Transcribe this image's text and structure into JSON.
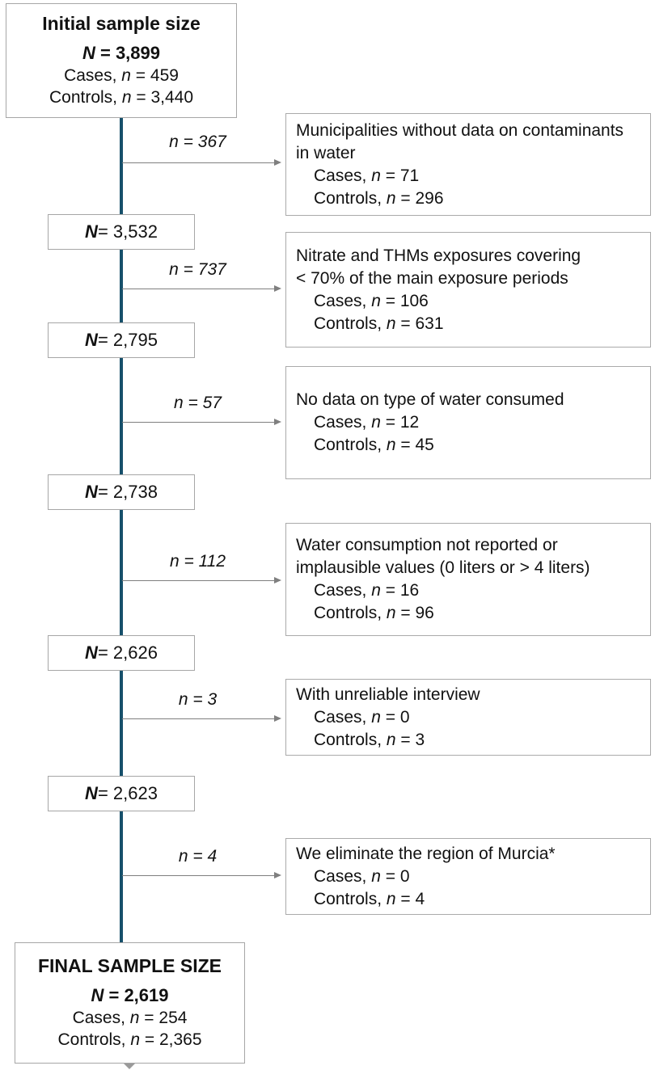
{
  "colors": {
    "connector_line": "#17506b",
    "arrow": "#7f7f7f",
    "box_border": "#a6a6a6"
  },
  "initial_box": {
    "title": "Initial sample size",
    "n": {
      "var": "N",
      "rest": " = 3,899"
    },
    "cases": {
      "pre": "Cases, ",
      "var": "n",
      "rest": " = 459"
    },
    "controls": {
      "pre": "Controls, ",
      "var": "n",
      "rest": " = 3,440"
    }
  },
  "final_box": {
    "title": "FINAL SAMPLE SIZE",
    "n": {
      "var": "N",
      "rest": " = 2,619"
    },
    "cases": {
      "pre": "Cases, ",
      "var": "n",
      "rest": " = 254"
    },
    "controls": {
      "pre": "Controls, ",
      "var": "n",
      "rest": " = 2,365"
    }
  },
  "steps": [
    {
      "arrow_label": "n = 367",
      "exclusion": {
        "reason_lines": [
          "Municipalities without data on contaminants",
          "in water"
        ],
        "cases": {
          "pre": "Cases, ",
          "var": "n",
          "rest": " = 71"
        },
        "controls": {
          "pre": "Controls, ",
          "var": "n",
          "rest": " = 296"
        }
      },
      "result": {
        "var": "N",
        "rest": " = 3,532"
      }
    },
    {
      "arrow_label": "n = 737",
      "exclusion": {
        "reason_lines": [
          "Nitrate and THMs exposures covering",
          "< 70% of the main exposure periods"
        ],
        "cases": {
          "pre": "Cases, ",
          "var": "n",
          "rest": " = 106"
        },
        "controls": {
          "pre": "Controls, ",
          "var": "n",
          "rest": " = 631"
        }
      },
      "result": {
        "var": "N",
        "rest": " = 2,795"
      }
    },
    {
      "arrow_label": "n = 57",
      "exclusion": {
        "reason_lines": [
          "No data on type of water consumed"
        ],
        "cases": {
          "pre": "Cases, ",
          "var": "n",
          "rest": " = 12"
        },
        "controls": {
          "pre": "Controls, ",
          "var": "n",
          "rest": " = 45"
        }
      },
      "result": {
        "var": "N",
        "rest": " = 2,738"
      }
    },
    {
      "arrow_label": "n = 112",
      "exclusion": {
        "reason_lines": [
          "Water consumption not reported or",
          "implausible values (0 liters or > 4 liters)"
        ],
        "cases": {
          "pre": "Cases, ",
          "var": "n",
          "rest": " = 16"
        },
        "controls": {
          "pre": "Controls, ",
          "var": "n",
          "rest": " = 96"
        }
      },
      "result": {
        "var": "N",
        "rest": " = 2,626"
      }
    },
    {
      "arrow_label": "n = 3",
      "exclusion": {
        "reason_lines": [
          "With unreliable interview"
        ],
        "cases": {
          "pre": "Cases, ",
          "var": "n",
          "rest": " = 0"
        },
        "controls": {
          "pre": "Controls, ",
          "var": "n",
          "rest": " = 3"
        }
      },
      "result": {
        "var": "N",
        "rest": " = 2,623"
      }
    },
    {
      "arrow_label": "n = 4",
      "exclusion": {
        "reason_lines": [
          "We eliminate the region of Murcia*"
        ],
        "cases": {
          "pre": "Cases, ",
          "var": "n",
          "rest": " = 0"
        },
        "controls": {
          "pre": "Controls, ",
          "var": "n",
          "rest": " = 4"
        }
      }
    }
  ]
}
